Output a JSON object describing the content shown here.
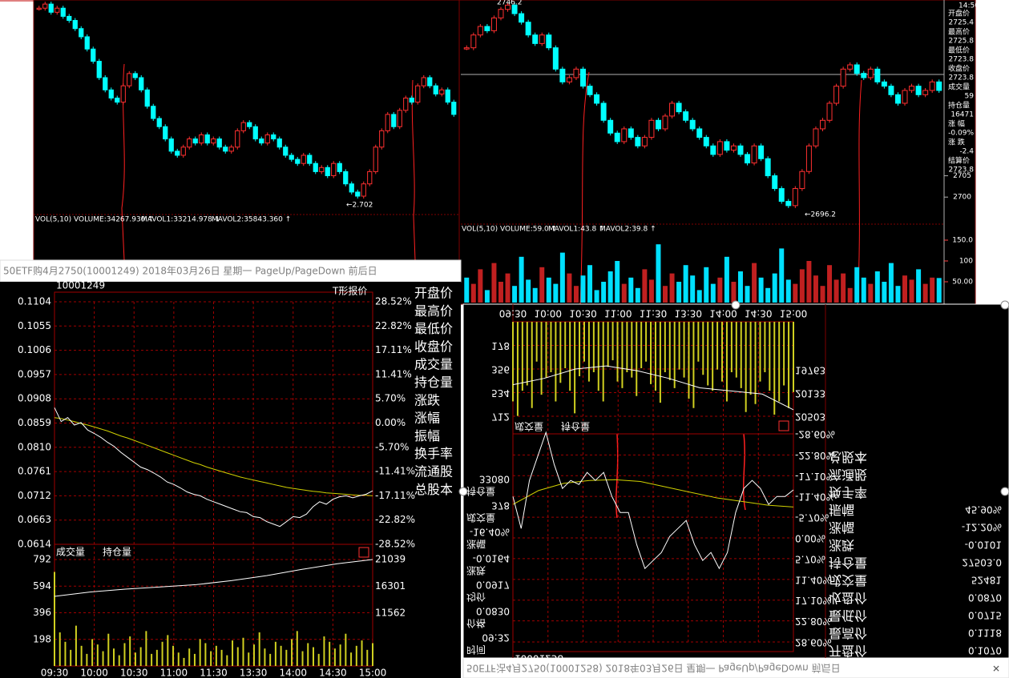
{
  "top_left": {
    "vol_label": "VOL(5,10) VOLUME:34267.930 ↑",
    "mavol1": "MAVOL1:33214.978 ↓",
    "mavol2": "MAVOL2:35843.360 ↑",
    "low_note": "←2.702",
    "ylim": [
      2.6975,
      2.75
    ],
    "closes": [
      2.748,
      2.749,
      2.747,
      2.748,
      2.746,
      2.745,
      2.743,
      2.741,
      2.738,
      2.735,
      2.731,
      2.728,
      2.726,
      2.725,
      2.729,
      2.732,
      2.731,
      2.728,
      2.724,
      2.721,
      2.719,
      2.716,
      2.713,
      2.712,
      2.714,
      2.716,
      2.715,
      2.717,
      2.715,
      2.716,
      2.714,
      2.713,
      2.714,
      2.718,
      2.72,
      2.719,
      2.716,
      2.715,
      2.717,
      2.716,
      2.714,
      2.712,
      2.711,
      2.71,
      2.712,
      2.71,
      2.708,
      2.709,
      2.707,
      2.71,
      2.708,
      2.705,
      2.703,
      2.702,
      2.705,
      2.708,
      2.714,
      2.718,
      2.722,
      2.719,
      2.723,
      2.726,
      2.725,
      2.729,
      2.731,
      2.729,
      2.727,
      2.728,
      2.725,
      2.722
    ]
  },
  "top_right": {
    "time": "14:50",
    "high_note": "2746.2",
    "low_note": "←2696.2",
    "vol_label": "VOL(5,10) VOLUME:59.0 ↑",
    "mavol1": "MAVOL1:43.8 ↑",
    "mavol2": "MAVOL2:39.8 ↑",
    "ylim": [
      2694.6,
      2746.2
    ],
    "yticks": [
      2705,
      2700
    ],
    "vol_ylim": [
      0,
      150
    ],
    "vol_ticks": [
      {
        "value": 150,
        "label": "150.0"
      },
      100,
      {
        "value": 50,
        "label": "50.00"
      }
    ],
    "side": [
      {
        "label": "开盘价",
        "value": "2725.4"
      },
      {
        "label": "最高价",
        "value": "2725.8"
      },
      {
        "label": "最低价",
        "value": "2723.8"
      },
      {
        "label": "收盘价",
        "value": "2723.8"
      },
      {
        "label": "成交量",
        "value": "59"
      },
      {
        "label": "持仓量",
        "value": "16471"
      },
      {
        "label": "涨 幅",
        "value": "-0.09%"
      },
      {
        "label": "涨 跌",
        "value": "-2.4"
      },
      {
        "label": "结算价",
        "value": "2723.8"
      }
    ],
    "closes": [
      2735,
      2738,
      2740,
      2739,
      2742,
      2744,
      2745,
      2743,
      2741,
      2738,
      2736,
      2738,
      2735,
      2730,
      2727,
      2728,
      2730,
      2726,
      2724,
      2722,
      2718,
      2715,
      2713,
      2716,
      2714,
      2712,
      2714,
      2718,
      2716,
      2719,
      2722,
      2720,
      2718,
      2716,
      2714,
      2712,
      2710,
      2713,
      2711,
      2712,
      2710,
      2708,
      2712,
      2709,
      2705,
      2702,
      2699,
      2698,
      2702,
      2706,
      2712,
      2716,
      2718,
      2722,
      2726,
      2730,
      2731,
      2729,
      2728,
      2730,
      2727,
      2726,
      2724,
      2722,
      2725,
      2726,
      2724,
      2725,
      2727,
      2725
    ],
    "volumes": [
      60,
      45,
      80,
      30,
      95,
      50,
      70,
      40,
      110,
      55,
      35,
      85,
      60,
      45,
      120,
      70,
      40,
      65,
      90,
      30,
      50,
      75,
      100,
      45,
      60,
      35,
      80,
      55,
      140,
      40,
      70,
      50,
      90,
      65,
      30,
      85,
      45,
      60,
      110,
      50,
      75,
      40,
      95,
      60,
      35,
      70,
      130,
      55,
      45,
      80,
      100,
      65,
      40,
      90,
      55,
      70,
      35,
      85,
      60,
      45,
      75,
      50,
      95,
      40,
      65,
      55,
      80,
      45,
      60,
      59
    ]
  },
  "bottom_left": {
    "title": "50ETF购4月2750(10001249) 2018年03月26日 星期一 PageUp/PageDown 前后日",
    "code": "10001249",
    "quote_button": "T形报价",
    "price_ticks": [
      0.1104,
      0.1055,
      0.1006,
      0.0957,
      0.0908,
      0.0859,
      {
        "value": 0.081,
        "label": "0.0810"
      },
      0.0761,
      0.0712,
      0.0663,
      0.0614
    ],
    "pct_ticks": [
      "28.52%",
      "22.82%",
      "17.11%",
      "11.41%",
      "5.70%",
      "0.00%",
      "-5.70%",
      "-11.41%",
      "-17.11%",
      "-22.82%",
      "-28.52%"
    ],
    "vol_ticks": [
      792,
      594,
      396,
      198
    ],
    "oi_ticks": [
      21039,
      16301,
      11562
    ],
    "times": [
      "09:30",
      "10:00",
      "10:30",
      "11:00",
      "11:30",
      "13:30",
      "14:00",
      "14:30",
      "15:00"
    ],
    "legend": [
      "成交量",
      "持仓量"
    ],
    "side_labels": [
      "开盘价",
      "最高价",
      "最低价",
      "收盘价",
      "成交量",
      "持仓量",
      "涨跌",
      "涨幅",
      "振幅",
      "换手率",
      "流通股",
      "总股本"
    ],
    "price": [
      0.089,
      0.0862,
      0.087,
      0.0855,
      0.086,
      0.0845,
      0.0838,
      0.083,
      0.082,
      0.0812,
      0.08,
      0.079,
      0.078,
      0.077,
      0.0765,
      0.0758,
      0.075,
      0.074,
      0.0735,
      0.0728,
      0.072,
      0.0715,
      0.0712,
      0.0705,
      0.07,
      0.0695,
      0.069,
      0.0685,
      0.068,
      0.0678,
      0.067,
      0.0668,
      0.066,
      0.0655,
      0.065,
      0.066,
      0.067,
      0.0668,
      0.0675,
      0.069,
      0.07,
      0.0695,
      0.0705,
      0.071,
      0.0712,
      0.0708,
      0.0712,
      0.0715,
      0.0722
    ],
    "avg": [
      0.087,
      0.0868,
      0.0865,
      0.0862,
      0.0858,
      0.0855,
      0.0851,
      0.0847,
      0.0843,
      0.0838,
      0.0833,
      0.0829,
      0.0824,
      0.0819,
      0.0814,
      0.0809,
      0.0804,
      0.0799,
      0.0794,
      0.0789,
      0.0784,
      0.0779,
      0.0775,
      0.077,
      0.0766,
      0.0762,
      0.0758,
      0.0754,
      0.075,
      0.0747,
      0.0744,
      0.0741,
      0.0738,
      0.0735,
      0.0732,
      0.0729,
      0.0727,
      0.0725,
      0.0723,
      0.0721,
      0.072,
      0.0718,
      0.0717,
      0.0716,
      0.0715,
      0.0714,
      0.0713,
      0.0713,
      0.0712
    ],
    "volume": [
      700,
      250,
      180,
      120,
      300,
      150,
      90,
      200,
      160,
      110,
      240,
      130,
      80,
      170,
      220,
      100,
      140,
      260,
      90,
      120,
      180,
      230,
      150,
      100,
      60,
      130,
      90,
      200,
      170,
      110,
      150,
      120,
      80,
      190,
      140,
      210,
      100,
      160,
      250,
      130,
      90,
      180,
      150,
      120,
      200,
      260,
      110,
      170,
      140,
      90,
      220,
      180,
      130,
      160,
      240,
      100,
      150,
      190,
      120,
      170
    ],
    "open_interest": [
      14532,
      15300,
      15800,
      16200,
      16600,
      17300,
      18200,
      19300,
      20300,
      21039
    ]
  },
  "bottom_right": {
    "title": "50ETF沽4月2750(10001258) 2018年03月26日 星期一 PageUp/PageDown 前后日",
    "code": "10001258",
    "pct_ticks": [
      {
        "value": 28.6,
        "label": "28.60%"
      },
      {
        "value": 22.8,
        "label": "22.80%"
      },
      {
        "value": 17.1,
        "label": "17.10%"
      },
      {
        "value": 11.4,
        "label": "11.40%"
      },
      {
        "value": 5.7,
        "label": "5.70%"
      },
      {
        "value": 0,
        "label": "0.00%"
      },
      {
        "value": -5.7,
        "label": "-5.70%"
      },
      {
        "value": -11.4,
        "label": "-11.40%"
      },
      {
        "value": -17.1,
        "label": "-17.10%"
      },
      {
        "value": -22.8,
        "label": "-22.80%"
      },
      {
        "value": -28.6,
        "label": "-28.60%"
      }
    ],
    "vol_ticks": [
      712,
      534,
      356,
      178
    ],
    "oi_ticks": [
      20503,
      20133,
      19763
    ],
    "times": [
      "09:30",
      "10:00",
      "10:30",
      "11:00",
      "11:30",
      "13:30",
      "14:00",
      "14:30",
      "15:00"
    ],
    "legend": [
      "成交量",
      "持仓量"
    ],
    "info": [
      {
        "label": "开盘价",
        "value": "0.1070"
      },
      {
        "label": "最高价",
        "value": "0.1118"
      },
      {
        "label": "最低价",
        "value": "0.0715"
      },
      {
        "label": "收盘价",
        "value": "0.0870"
      },
      {
        "label": "成交量",
        "value": "52481"
      },
      {
        "label": "持仓量",
        "value": "27503.0"
      },
      {
        "label": "涨跌",
        "value": "-0.0101"
      },
      {
        "label": "涨幅",
        "value": "-12.20%"
      },
      {
        "label": "振幅",
        "value": "45.90%"
      },
      {
        "label": "换手率"
      },
      {
        "label": "流通股"
      },
      {
        "label": "总股本"
      }
    ],
    "detail": [
      {
        "label": "时间",
        "value": "09:32"
      },
      {
        "label": "价格",
        "value": "0.0830"
      },
      {
        "label": "均价",
        "value": "0.0917"
      },
      {
        "label": "涨跌",
        "value": "-0.0164"
      },
      {
        "label": "涨幅",
        "value": "-16.40%"
      },
      {
        "label": "成交量",
        "value": "378"
      },
      {
        "label": "持仓量",
        "value": "33080"
      }
    ],
    "pct": [
      -11.4,
      -2.6,
      -15.8,
      -22.4,
      -29.0,
      -20.2,
      -13.6,
      -15.8,
      -14.7,
      -18.0,
      -15.8,
      -18.0,
      -11.4,
      -7.0,
      -7.0,
      1.8,
      8.4,
      6.2,
      4.0,
      -0.4,
      -2.6,
      -4.8,
      1.8,
      6.2,
      4.0,
      8.4,
      4.0,
      -7.0,
      -13.6,
      -15.8,
      -13.6,
      -9.2,
      -11.4,
      -11.4,
      -13.2
    ],
    "avg": [
      -9.2,
      -13,
      -15,
      -15.8,
      -16,
      -15.5,
      -14,
      -12.5,
      -11,
      -10,
      -9,
      -8.5
    ],
    "volume": [
      600,
      710,
      520,
      480,
      650,
      300,
      550,
      420,
      380,
      600,
      460,
      350,
      520,
      690,
      410,
      300,
      450,
      380,
      520,
      600,
      340,
      290,
      450,
      500,
      380,
      420,
      560,
      350,
      300,
      470,
      520,
      610,
      380,
      440,
      500,
      360,
      420,
      580,
      650,
      300,
      400,
      480,
      520,
      360,
      450,
      600,
      380,
      420,
      500,
      680,
      550,
      620,
      450,
      380,
      520,
      700,
      600,
      480,
      650,
      530
    ],
    "open_interest": [
      20000,
      19900,
      19750,
      19700,
      19780,
      19900,
      20050,
      20100,
      20150,
      20400
    ]
  }
}
